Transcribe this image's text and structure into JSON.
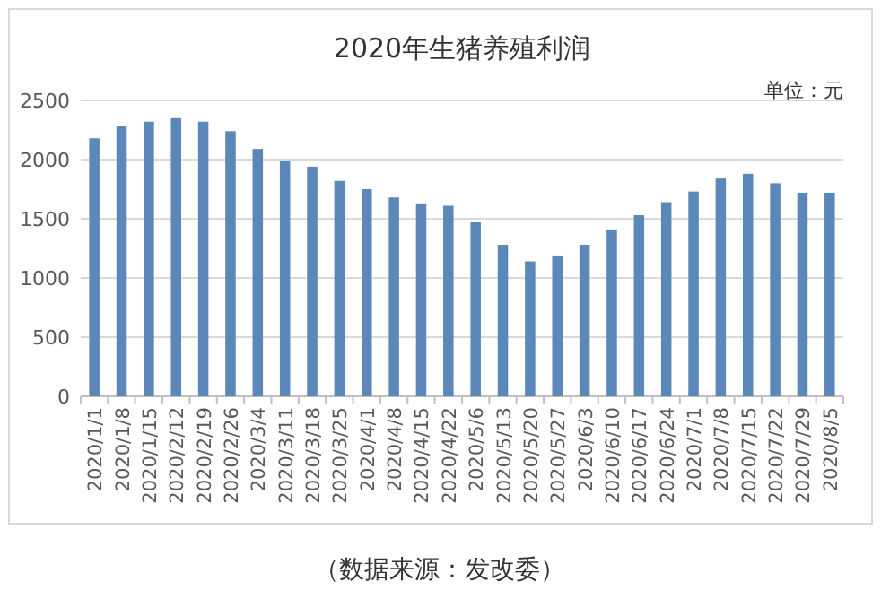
{
  "chart_data": {
    "type": "bar",
    "title": "2020年生猪养殖利润",
    "categories": [
      "2020/1/1",
      "2020/1/8",
      "2020/1/15",
      "2020/2/12",
      "2020/2/19",
      "2020/2/26",
      "2020/3/4",
      "2020/3/11",
      "2020/3/18",
      "2020/3/25",
      "2020/4/1",
      "2020/4/8",
      "2020/4/15",
      "2020/4/22",
      "2020/5/6",
      "2020/5/13",
      "2020/5/20",
      "2020/5/27",
      "2020/6/3",
      "2020/6/10",
      "2020/6/17",
      "2020/6/24",
      "2020/7/1",
      "2020/7/8",
      "2020/7/15",
      "2020/7/22",
      "2020/7/29",
      "2020/8/5"
    ],
    "values": [
      2180,
      2280,
      2320,
      2350,
      2320,
      2240,
      2090,
      1990,
      1940,
      1820,
      1750,
      1680,
      1630,
      1610,
      1470,
      1280,
      1140,
      1190,
      1280,
      1410,
      1530,
      1640,
      1730,
      1840,
      1880,
      1800,
      1720,
      1720
    ],
    "color": "#5b87b9",
    "ylim": [
      0,
      2500
    ],
    "yticks": [
      0,
      500,
      1000,
      1500,
      2000,
      2500
    ],
    "grid": "y",
    "annotations": [
      "单位：元",
      "（数据来源：发改委）"
    ]
  }
}
